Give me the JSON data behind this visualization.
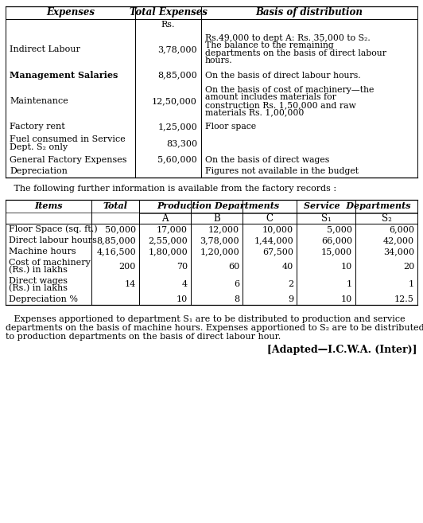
{
  "table1": {
    "headers": [
      "Expenses",
      "Total Expenses",
      "Basis of distribution"
    ],
    "col2_sub": "Rs.",
    "rows": [
      {
        "col1": "Indirect Labour",
        "col2": "3,78,000",
        "col3": "Rs.49,000 to dept A: Rs. 35,000 to S₂.\nThe balance to the remaining\ndepartments on the basis of direct labour\nhours.",
        "bold1": false
      },
      {
        "col1": "Management Salaries",
        "col2": "8,85,000",
        "col3": "On the basis of direct labour hours.",
        "bold1": true
      },
      {
        "col1": "Maintenance",
        "col2": "12,50,000",
        "col3": "On the basis of cost of machinery—the\namount includes materials for\nconstruction Rs. 1,50,000 and raw\nmaterials Rs. 1,00,000",
        "bold1": false
      },
      {
        "col1": "Factory rent",
        "col2": "1,25,000",
        "col3": "Floor space",
        "bold1": false
      },
      {
        "col1": "Fuel consumed in Service\nDept. S₂ only",
        "col2": "83,300",
        "col3": "",
        "bold1": false
      },
      {
        "col1": "General Factory Expenses",
        "col2": "5,60,000",
        "col3": "On the basis of direct wages",
        "bold1": false
      },
      {
        "col1": "Depreciation",
        "col2": "",
        "col3": "Figures not available in the budget",
        "bold1": false
      }
    ]
  },
  "between_text": "   The following further information is available from the factory records :",
  "table2": {
    "rows": [
      [
        "Floor Space (sq. ft.)",
        "50,000",
        "17,000",
        "12,000",
        "10,000",
        "5,000",
        "6,000"
      ],
      [
        "Direct labour hours",
        "8,85,000",
        "2,55,000",
        "3,78,000",
        "1,44,000",
        "66,000",
        "42,000"
      ],
      [
        "Machine hours",
        "4,16,500",
        "1,80,000",
        "1,20,000",
        "67,500",
        "15,000",
        "34,000"
      ],
      [
        "Cost of machinery\n(Rs.) in lakhs",
        "200",
        "70",
        "60",
        "40",
        "10",
        "20"
      ],
      [
        "Direct wages\n(Rs.) in lakhs",
        "14",
        "4",
        "6",
        "2",
        "1",
        "1"
      ],
      [
        "Depreciation %",
        "",
        "10",
        "8",
        "9",
        "10",
        "12.5"
      ]
    ]
  },
  "footer_text": "   Expenses apportioned to department S₁ are to be distributed to production and service\ndepartments on the basis of machine hours. Expenses apportioned to S₂ are to be distributed\nto production departments on the basis of direct labour hour.",
  "adapted_text": "[Adapted—I.C.W.A. (Inter)]"
}
